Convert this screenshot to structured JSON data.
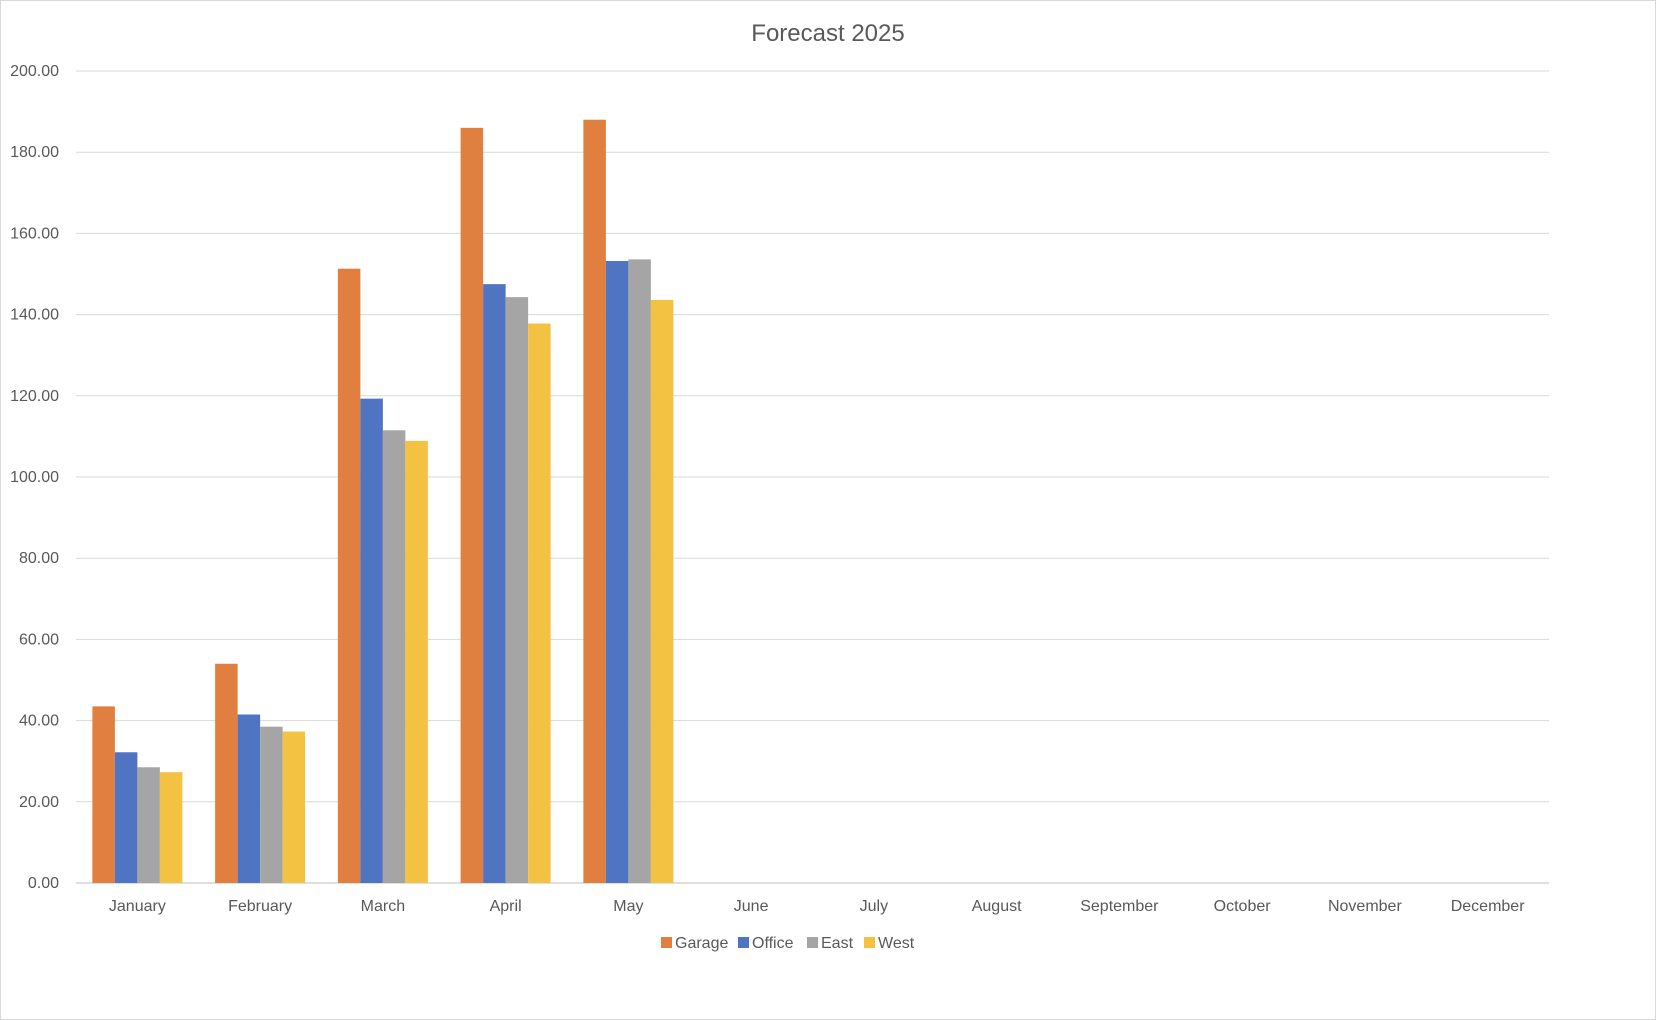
{
  "chart_data": {
    "type": "bar",
    "title": "Forecast 2025",
    "xlabel": "",
    "ylabel": "",
    "ylim": [
      0,
      200
    ],
    "y_ticks": [
      "0.00",
      "20.00",
      "40.00",
      "60.00",
      "80.00",
      "100.00",
      "120.00",
      "140.00",
      "160.00",
      "180.00",
      "200.00"
    ],
    "grid": true,
    "legend_position": "bottom",
    "categories": [
      "January",
      "February",
      "March",
      "April",
      "May",
      "June",
      "July",
      "August",
      "September",
      "October",
      "November",
      "December"
    ],
    "series": [
      {
        "name": "Garage",
        "color": "#E07F3F",
        "values": [
          43.5,
          54.0,
          151.3,
          186.0,
          188.0,
          null,
          null,
          null,
          null,
          null,
          null,
          null
        ]
      },
      {
        "name": "Office",
        "color": "#4F74C2",
        "values": [
          32.2,
          41.5,
          119.3,
          147.5,
          153.2,
          null,
          null,
          null,
          null,
          null,
          null,
          null
        ]
      },
      {
        "name": "East",
        "color": "#A5A5A5",
        "values": [
          28.5,
          38.5,
          111.5,
          144.3,
          153.6,
          null,
          null,
          null,
          null,
          null,
          null,
          null
        ]
      },
      {
        "name": "West",
        "color": "#F4C242",
        "values": [
          27.3,
          37.3,
          108.9,
          137.8,
          143.6,
          null,
          null,
          null,
          null,
          null,
          null,
          null
        ]
      }
    ]
  },
  "colors": {
    "grid": "#d9d9d9",
    "axis": "#bfbfbf",
    "text": "#595959"
  }
}
